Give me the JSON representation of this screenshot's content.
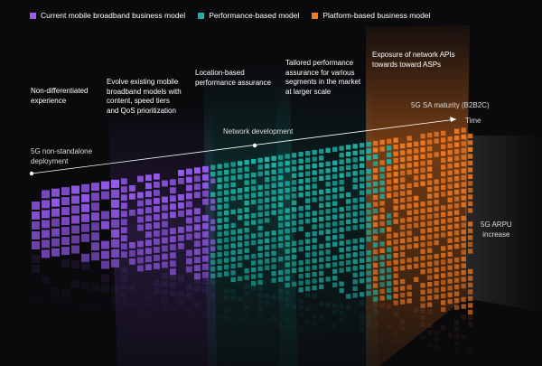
{
  "legend": [
    {
      "label": "Current mobile broadband business model",
      "color": "#9b5cf6"
    },
    {
      "label": "Performance-based model",
      "color": "#1bb5a7"
    },
    {
      "label": "Platform-based business model",
      "color": "#f47a20"
    }
  ],
  "stages": [
    "Non-differentiated\nexperience",
    "Evolve existing mobile\nbroadband models with\ncontent, speed tiers\nand QoS prioritization",
    "Location-based\nperformance assurance",
    "Tailored performance\nassurance for various\nsegments in the market\nat larger scale",
    "Exposure of network APIs\ntowards toward ASPs"
  ],
  "axis": {
    "start_label": "5G non-standalone\ndeployment",
    "mid_label": "Network development",
    "sa_label": "5G SA maturity (B2B2C)",
    "end_label": "Time",
    "arpu_label": "5G ARPU\nincrease"
  },
  "colors": {
    "purple": "#9b5cf6",
    "teal": "#1bb5a7",
    "orange": "#f47a20",
    "background": "#0a0a0d"
  }
}
